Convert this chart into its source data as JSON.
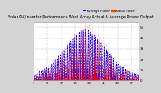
{
  "title": "Solar PV/Inverter Performance West Array Actual & Average Power Output",
  "title_fontsize": 3.5,
  "bg_color": "#d4d4d4",
  "plot_bg": "#ffffff",
  "grid_color": "#999999",
  "bar_color": "#ff0000",
  "avg_color": "#0000ff",
  "legend_actual_color": "#ff4400",
  "legend_actual": "Actual Power",
  "legend_avg": "Average Power",
  "ylim": [
    0,
    5500
  ],
  "ytick_labels": [
    "0",
    "1k",
    "2k",
    "3k",
    "4k",
    "5k"
  ],
  "ytick_vals": [
    0,
    1000,
    2000,
    3000,
    4000,
    5000
  ],
  "xlabel_fontsize": 2.8,
  "ylabel_fontsize": 3.0,
  "n_days": 60,
  "samples_per_day": 20,
  "seasonal_peaks": [
    500,
    600,
    700,
    800,
    900,
    1000,
    1100,
    1200,
    1300,
    1400,
    1500,
    1700,
    1900,
    2100,
    2300,
    2500,
    2700,
    2900,
    3100,
    3300,
    3500,
    3700,
    3900,
    4100,
    4300,
    4500,
    4600,
    4700,
    4800,
    4900,
    4850,
    4700,
    4550,
    4400,
    4250,
    4100,
    3900,
    3700,
    3500,
    3300,
    3100,
    2900,
    2700,
    2500,
    2300,
    2100,
    1900,
    1700,
    1500,
    1400,
    1300,
    1200,
    1100,
    1000,
    900,
    800,
    700,
    650,
    600,
    550
  ]
}
